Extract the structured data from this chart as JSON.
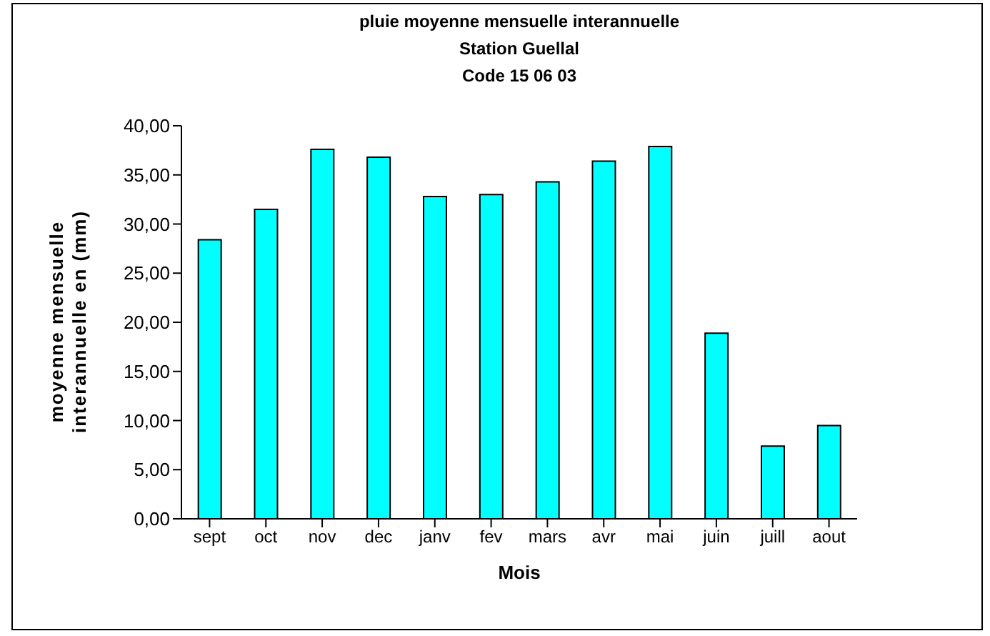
{
  "chart_data": {
    "type": "bar",
    "title": "pluie moyenne mensuelle interannuelle",
    "subtitle": "Station Guellal",
    "annotations": [
      "Code 15 06 03"
    ],
    "xlabel": "Mois",
    "ylabel": "moyenne mensuelle interannuelle en (mm)",
    "categories": [
      "sept",
      "oct",
      "nov",
      "dec",
      "janv",
      "fev",
      "mars",
      "avr",
      "mai",
      "juin",
      "juill",
      "aout"
    ],
    "values": [
      28.4,
      31.5,
      37.6,
      36.8,
      32.8,
      33.0,
      34.3,
      36.4,
      37.9,
      18.9,
      7.4,
      9.5
    ],
    "color": "#00ffff",
    "ylim": [
      0,
      40
    ],
    "yticks": [
      {
        "value": 0,
        "label": "0,00"
      },
      {
        "value": 5,
        "label": "5,00"
      },
      {
        "value": 10,
        "label": "10,00"
      },
      {
        "value": 15,
        "label": "15,00"
      },
      {
        "value": 20,
        "label": "20,00"
      },
      {
        "value": 25,
        "label": "25,00"
      },
      {
        "value": 30,
        "label": "30,00"
      },
      {
        "value": 35,
        "label": "35,00"
      },
      {
        "value": 40,
        "label": "40,00"
      }
    ],
    "grid": false,
    "legend": false
  }
}
